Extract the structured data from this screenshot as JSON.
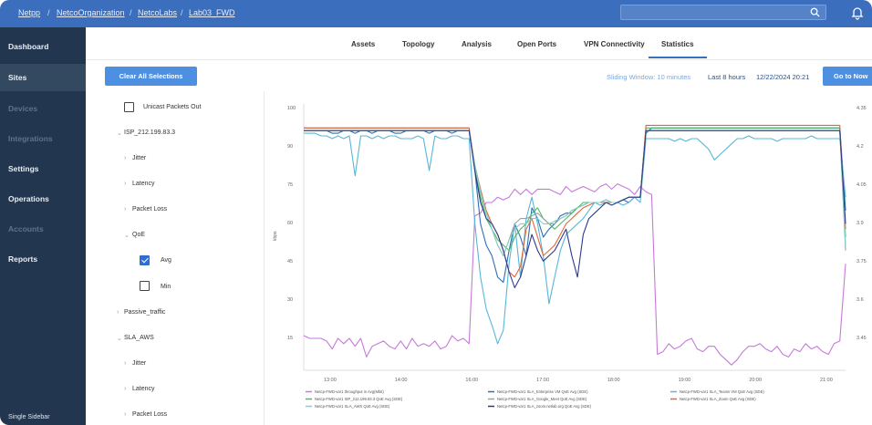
{
  "breadcrumb": [
    "Netpp",
    "NetcoOrganization",
    "NetcoLabs",
    "Lab03_FWD"
  ],
  "search": {
    "placeholder": ""
  },
  "sidebar": {
    "items": [
      {
        "label": "Dashboard",
        "state": "normal"
      },
      {
        "label": "Sites",
        "state": "active"
      },
      {
        "label": "Devices",
        "state": "dim"
      },
      {
        "label": "Integrations",
        "state": "dim"
      },
      {
        "label": "Settings",
        "state": "normal"
      },
      {
        "label": "Operations",
        "state": "normal"
      },
      {
        "label": "Accounts",
        "state": "dim"
      },
      {
        "label": "Reports",
        "state": "normal"
      }
    ],
    "footer": "Single Sidebar"
  },
  "tabs": [
    {
      "label": "Assets",
      "active": false
    },
    {
      "label": "Topology",
      "active": false
    },
    {
      "label": "Analysis",
      "active": false
    },
    {
      "label": "Open Ports",
      "active": false
    },
    {
      "label": "VPN Connectivity",
      "active": false
    },
    {
      "label": "Statistics",
      "active": true
    }
  ],
  "toolbar": {
    "clear_label": "Clear All Selections",
    "sliding_label": "Sliding Window: 10 minutes",
    "last_hours_label": "Last 8 hours",
    "timestamp": "12/22/2024 20:21",
    "goto_label": "Go to Now"
  },
  "tree": {
    "unicast_label": "Unicast Packets Out",
    "unicast_checked": false,
    "isp_label": "ISP_212.199.83.3",
    "jitter_label": "Jitter",
    "latency_label": "Latency",
    "packet_loss_label": "Packet Loss",
    "qoe_label": "QoE",
    "avg_label": "Avg",
    "avg_checked": true,
    "min_label": "Min",
    "min_checked": false,
    "passive_label": "Passive_traffic",
    "sla_label": "SLA_AWS",
    "jitter2_label": "Jitter",
    "latency2_label": "Latency",
    "packet_loss2_label": "Packet Loss"
  },
  "chart_data": {
    "type": "line",
    "xlabel": "",
    "ylabel": "kbps",
    "y_ticks": [
      "100",
      "90",
      "75",
      "60",
      "45",
      "30",
      "15"
    ],
    "y2_ticks": [
      "4.35",
      "4.2",
      "4.05",
      "3.9",
      "3.75",
      "3.6",
      "3.45"
    ],
    "x_ticks": [
      "13:00",
      "14:00",
      "16:00",
      "17:00",
      "18:00",
      "19:00",
      "20:00",
      "21:00"
    ],
    "ylim": [
      5,
      105
    ],
    "x": [
      0,
      1,
      2,
      3,
      4,
      5,
      6,
      7,
      8,
      9,
      10,
      11,
      12,
      13,
      14,
      15,
      16,
      17,
      18,
      19,
      20,
      21,
      22,
      23,
      24,
      25,
      26,
      27,
      28,
      29,
      30,
      31,
      32,
      33,
      34,
      35,
      36,
      37,
      38,
      39,
      40,
      41,
      42,
      43,
      44,
      45,
      46,
      47,
      48,
      49,
      50,
      51,
      52,
      53,
      54,
      55,
      56,
      57,
      58,
      59,
      60,
      61,
      62,
      63,
      64,
      65,
      66,
      67,
      68,
      69,
      70,
      71,
      72,
      73,
      74,
      75,
      76,
      77,
      78,
      79,
      80,
      81,
      82,
      83,
      84,
      85,
      86,
      87,
      88,
      89,
      90,
      91,
      92,
      93,
      94,
      95
    ],
    "series": [
      {
        "name": "Netcp-FWD-var1 throughput in Avg(Mbit)",
        "color": "#c779d9",
        "values": [
          18,
          17,
          17,
          17,
          16,
          13,
          17,
          15,
          17,
          14,
          17,
          10,
          14,
          15,
          16,
          14,
          13,
          16,
          13,
          17,
          14,
          15,
          14,
          16,
          13,
          14,
          18,
          16,
          17,
          15,
          63,
          64,
          68,
          68,
          70,
          69,
          70,
          73,
          71,
          73,
          71,
          73,
          73,
          73,
          72,
          71,
          74,
          72,
          73,
          74,
          73,
          72,
          74,
          75,
          73,
          75,
          74,
          73,
          71,
          74,
          72,
          71,
          11,
          12,
          15,
          13,
          14,
          16,
          17,
          13,
          12,
          14,
          14,
          11,
          9,
          7,
          9,
          12,
          14,
          14,
          15,
          13,
          12,
          14,
          11,
          10,
          13,
          12,
          15,
          13,
          14,
          12,
          11,
          15,
          16,
          45
        ]
      },
      {
        "name": "Netcp-FWD-var1 SLA_Enterprise VM QoE Avg (SDE)",
        "color": "#2f6fb5",
        "values": [
          95,
          95,
          95,
          95,
          95,
          94,
          94,
          95,
          95,
          94,
          95,
          95,
          94,
          95,
          95,
          95,
          94,
          94,
          95,
          95,
          95,
          95,
          94,
          95,
          95,
          95,
          94,
          95,
          95,
          95,
          80,
          60,
          52,
          48,
          40,
          38,
          50,
          60,
          55,
          48,
          66,
          62,
          55,
          58,
          60,
          63,
          64,
          64,
          66,
          67,
          68,
          68,
          68,
          69,
          68,
          68,
          69,
          68,
          70,
          70,
          94,
          96,
          96,
          96,
          96,
          96,
          96,
          96,
          96,
          96,
          96,
          96,
          96,
          96,
          96,
          96,
          96,
          96,
          96,
          96,
          96,
          96,
          96,
          96,
          96,
          96,
          96,
          96,
          96,
          96,
          96,
          96,
          96,
          96,
          96,
          65
        ]
      },
      {
        "name": "Netcp-FWD-var1 SLA_Teams VM QoE Avg (SDE)",
        "color": "#58b7d6",
        "values": [
          94,
          94,
          94,
          93,
          93,
          92,
          93,
          92,
          93,
          78,
          93,
          93,
          92,
          93,
          92,
          93,
          93,
          92,
          92,
          92,
          93,
          92,
          80,
          93,
          92,
          92,
          93,
          93,
          92,
          92,
          60,
          40,
          28,
          22,
          15,
          20,
          45,
          60,
          40,
          62,
          70,
          60,
          48,
          30,
          40,
          50,
          56,
          58,
          60,
          62,
          65,
          68,
          67,
          68,
          68,
          68,
          67,
          68,
          70,
          68,
          92,
          92,
          92,
          92,
          92,
          91,
          92,
          91,
          92,
          92,
          90,
          88,
          84,
          86,
          88,
          90,
          92,
          92,
          93,
          92,
          92,
          92,
          92,
          91,
          92,
          92,
          92,
          92,
          92,
          93,
          92,
          92,
          92,
          92,
          92,
          70
        ]
      },
      {
        "name": "Netcp-FWD-var1 ISP_212.199.83.3 QoE Avg (SDE)",
        "color": "#4fb866",
        "values": [
          96,
          96,
          96,
          96,
          96,
          96,
          96,
          96,
          96,
          96,
          96,
          96,
          96,
          96,
          96,
          96,
          96,
          96,
          96,
          96,
          96,
          96,
          96,
          96,
          96,
          96,
          96,
          96,
          96,
          96,
          80,
          70,
          62,
          58,
          54,
          52,
          50,
          55,
          58,
          60,
          64,
          66,
          62,
          60,
          58,
          60,
          62,
          64,
          66,
          68,
          68,
          68,
          68,
          69,
          68,
          68,
          69,
          70,
          70,
          70,
          96,
          96,
          96,
          96,
          96,
          96,
          96,
          96,
          96,
          96,
          96,
          96,
          96,
          96,
          96,
          96,
          96,
          96,
          96,
          96,
          96,
          96,
          96,
          96,
          96,
          96,
          96,
          96,
          96,
          96,
          96,
          96,
          96,
          96,
          96,
          55
        ]
      },
      {
        "name": "Netcp-FWD-var1 SLA_Google_Meet QoE Avg (SDE)",
        "color": "#9aa0a6",
        "values": [
          95,
          95,
          95,
          95,
          95,
          95,
          95,
          95,
          95,
          95,
          95,
          95,
          95,
          95,
          95,
          95,
          95,
          95,
          95,
          95,
          95,
          95,
          95,
          95,
          95,
          95,
          95,
          95,
          95,
          95,
          82,
          72,
          64,
          58,
          52,
          48,
          54,
          60,
          62,
          62,
          63,
          64,
          62,
          60,
          60,
          62,
          63,
          65,
          66,
          67,
          68,
          68,
          68,
          69,
          68,
          68,
          69,
          70,
          70,
          70,
          95,
          95,
          95,
          95,
          95,
          95,
          95,
          95,
          95,
          95,
          95,
          95,
          95,
          95,
          95,
          95,
          95,
          95,
          95,
          95,
          95,
          95,
          95,
          95,
          95,
          95,
          95,
          95,
          95,
          95,
          95,
          95,
          95,
          95,
          95,
          50
        ]
      },
      {
        "name": "Netcp-FWD-var1 SLA_Zoom QoE Avg (SDE)",
        "color": "#e0663b",
        "values": [
          96,
          96,
          96,
          96,
          96,
          96,
          96,
          96,
          96,
          96,
          96,
          96,
          96,
          96,
          96,
          96,
          96,
          96,
          96,
          96,
          96,
          96,
          96,
          96,
          96,
          96,
          96,
          96,
          96,
          96,
          82,
          73,
          65,
          60,
          56,
          50,
          42,
          40,
          44,
          58,
          62,
          55,
          48,
          50,
          52,
          56,
          60,
          62,
          64,
          66,
          67,
          68,
          68,
          68,
          68,
          68,
          69,
          70,
          70,
          70,
          97,
          97,
          97,
          97,
          97,
          97,
          97,
          97,
          97,
          97,
          97,
          97,
          97,
          97,
          97,
          97,
          97,
          97,
          97,
          97,
          97,
          97,
          97,
          97,
          97,
          97,
          97,
          97,
          97,
          97,
          97,
          97,
          97,
          97,
          97,
          58
        ]
      },
      {
        "name": "Netcp-FWD-var1 SLA_AWS QoE Avg (SDE)",
        "color": "#7fd3c5",
        "values": [
          95,
          95,
          95,
          95,
          95,
          95,
          95,
          95,
          95,
          95,
          95,
          95,
          95,
          95,
          95,
          95,
          95,
          95,
          95,
          95,
          95,
          95,
          95,
          95,
          95,
          95,
          95,
          95,
          95,
          95,
          82,
          72,
          64,
          58,
          52,
          48,
          54,
          58,
          60,
          60,
          62,
          62,
          60,
          60,
          61,
          62,
          63,
          65,
          66,
          67,
          68,
          68,
          68,
          69,
          68,
          68,
          69,
          70,
          70,
          70,
          95,
          95,
          95,
          95,
          95,
          95,
          95,
          95,
          95,
          95,
          95,
          95,
          95,
          95,
          95,
          95,
          95,
          95,
          95,
          95,
          95,
          95,
          95,
          95,
          95,
          95,
          95,
          95,
          95,
          95,
          95,
          95,
          95,
          95,
          95,
          52
        ]
      },
      {
        "name": "Netcp-FWD-var1 SLA_zoom.netlab.org QoE Avg (SDE)",
        "color": "#2b3a8c",
        "values": [
          95,
          95,
          95,
          95,
          95,
          95,
          95,
          95,
          95,
          95,
          95,
          95,
          95,
          95,
          95,
          95,
          95,
          95,
          95,
          95,
          95,
          95,
          95,
          95,
          95,
          95,
          95,
          95,
          95,
          95,
          80,
          68,
          62,
          60,
          56,
          50,
          42,
          36,
          40,
          48,
          56,
          50,
          46,
          48,
          50,
          54,
          58,
          48,
          40,
          56,
          62,
          64,
          66,
          68,
          67,
          68,
          69,
          70,
          70,
          70,
          95,
          95,
          95,
          95,
          95,
          95,
          95,
          95,
          95,
          95,
          95,
          95,
          95,
          95,
          95,
          95,
          95,
          95,
          95,
          95,
          95,
          95,
          95,
          95,
          95,
          95,
          95,
          95,
          95,
          95,
          95,
          95,
          95,
          95,
          95,
          60
        ]
      }
    ],
    "legend_placement": "bottom",
    "grid": true
  }
}
